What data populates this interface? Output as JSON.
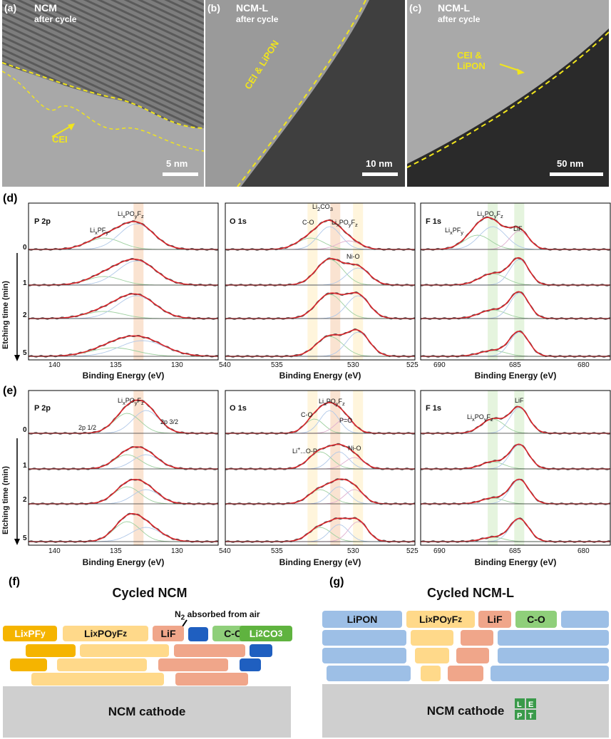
{
  "tem": [
    {
      "letter": "(a)",
      "title": "NCM",
      "subtitle": "after cycle",
      "scale": "5 nm",
      "cei": "CEI"
    },
    {
      "letter": "(b)",
      "title": "NCM-L",
      "subtitle": "after cycle",
      "scale": "10 nm",
      "cei": "CEI & LiPON"
    },
    {
      "letter": "(c)",
      "title": "NCM-L",
      "subtitle": "after cycle",
      "scale": "50 nm",
      "cei": "CEI & LiPON"
    }
  ],
  "xps_d": {
    "letter": "(d)",
    "ylabel": "Etching  time (min)",
    "times": [
      "0",
      "1",
      "2",
      "5"
    ],
    "panels": [
      {
        "core": "P 2p",
        "ticks": [
          "140",
          "135",
          "130"
        ],
        "xlabel": "Binding Energy (eV)",
        "peaks": [
          "LixPFy",
          "LixPOyFz"
        ]
      },
      {
        "core": "O 1s",
        "ticks": [
          "540",
          "535",
          "530",
          "525"
        ],
        "xlabel": "Binding Energy (eV)",
        "peaks": [
          "Li2CO3",
          "C-O",
          "LixPOyFz",
          "Ni-O"
        ]
      },
      {
        "core": "F 1s",
        "ticks": [
          "690",
          "685",
          "680"
        ],
        "xlabel": "Binding Energy (eV)",
        "peaks": [
          "LixPFy",
          "LixPOyFz",
          "LiF"
        ]
      }
    ]
  },
  "xps_e": {
    "letter": "(e)",
    "ylabel": "Etching  time (min)",
    "times": [
      "0",
      "1",
      "2",
      "5"
    ],
    "panels": [
      {
        "core": "P 2p",
        "ticks": [
          "140",
          "135",
          "130"
        ],
        "xlabel": "Binding Energy (eV)",
        "peaks": [
          "LixPOyFz",
          "2p 1/2",
          "2p 3/2"
        ]
      },
      {
        "core": "O 1s",
        "ticks": [
          "540",
          "535",
          "530",
          "525"
        ],
        "xlabel": "Binding Energy (eV)",
        "peaks": [
          "LixPOyFz",
          "C-O",
          "P=O",
          "Li+...O-P",
          "Ni-O"
        ]
      },
      {
        "core": "F 1s",
        "ticks": [
          "690",
          "685",
          "680"
        ],
        "xlabel": "Binding Energy (eV)",
        "peaks": [
          "LiF",
          "LixPOyFz"
        ]
      }
    ]
  },
  "schematic_f": {
    "letter": "(f)",
    "title": "Cycled NCM",
    "note": "N2 absorbed from air",
    "labels": [
      "LixPFy",
      "LixPOyFz",
      "LiF",
      "C-O",
      "Li2CO3"
    ],
    "cathode": "NCM cathode"
  },
  "schematic_g": {
    "letter": "(g)",
    "title": "Cycled NCM-L",
    "labels": [
      "LiPON",
      "LixPOyFz",
      "LiF",
      "C-O"
    ],
    "cathode": "NCM cathode"
  },
  "colors": {
    "accent_yellow": "#f1e51c",
    "fit_red": "#d9262b",
    "lipon_blue": "#9dbfe6",
    "lipofz_yellow": "#ffd98a",
    "lif_salmon": "#f0a68a",
    "co_green": "#8fcf7a",
    "lipfy_gold": "#f5b400",
    "n2_blue": "#1f5fc0"
  }
}
